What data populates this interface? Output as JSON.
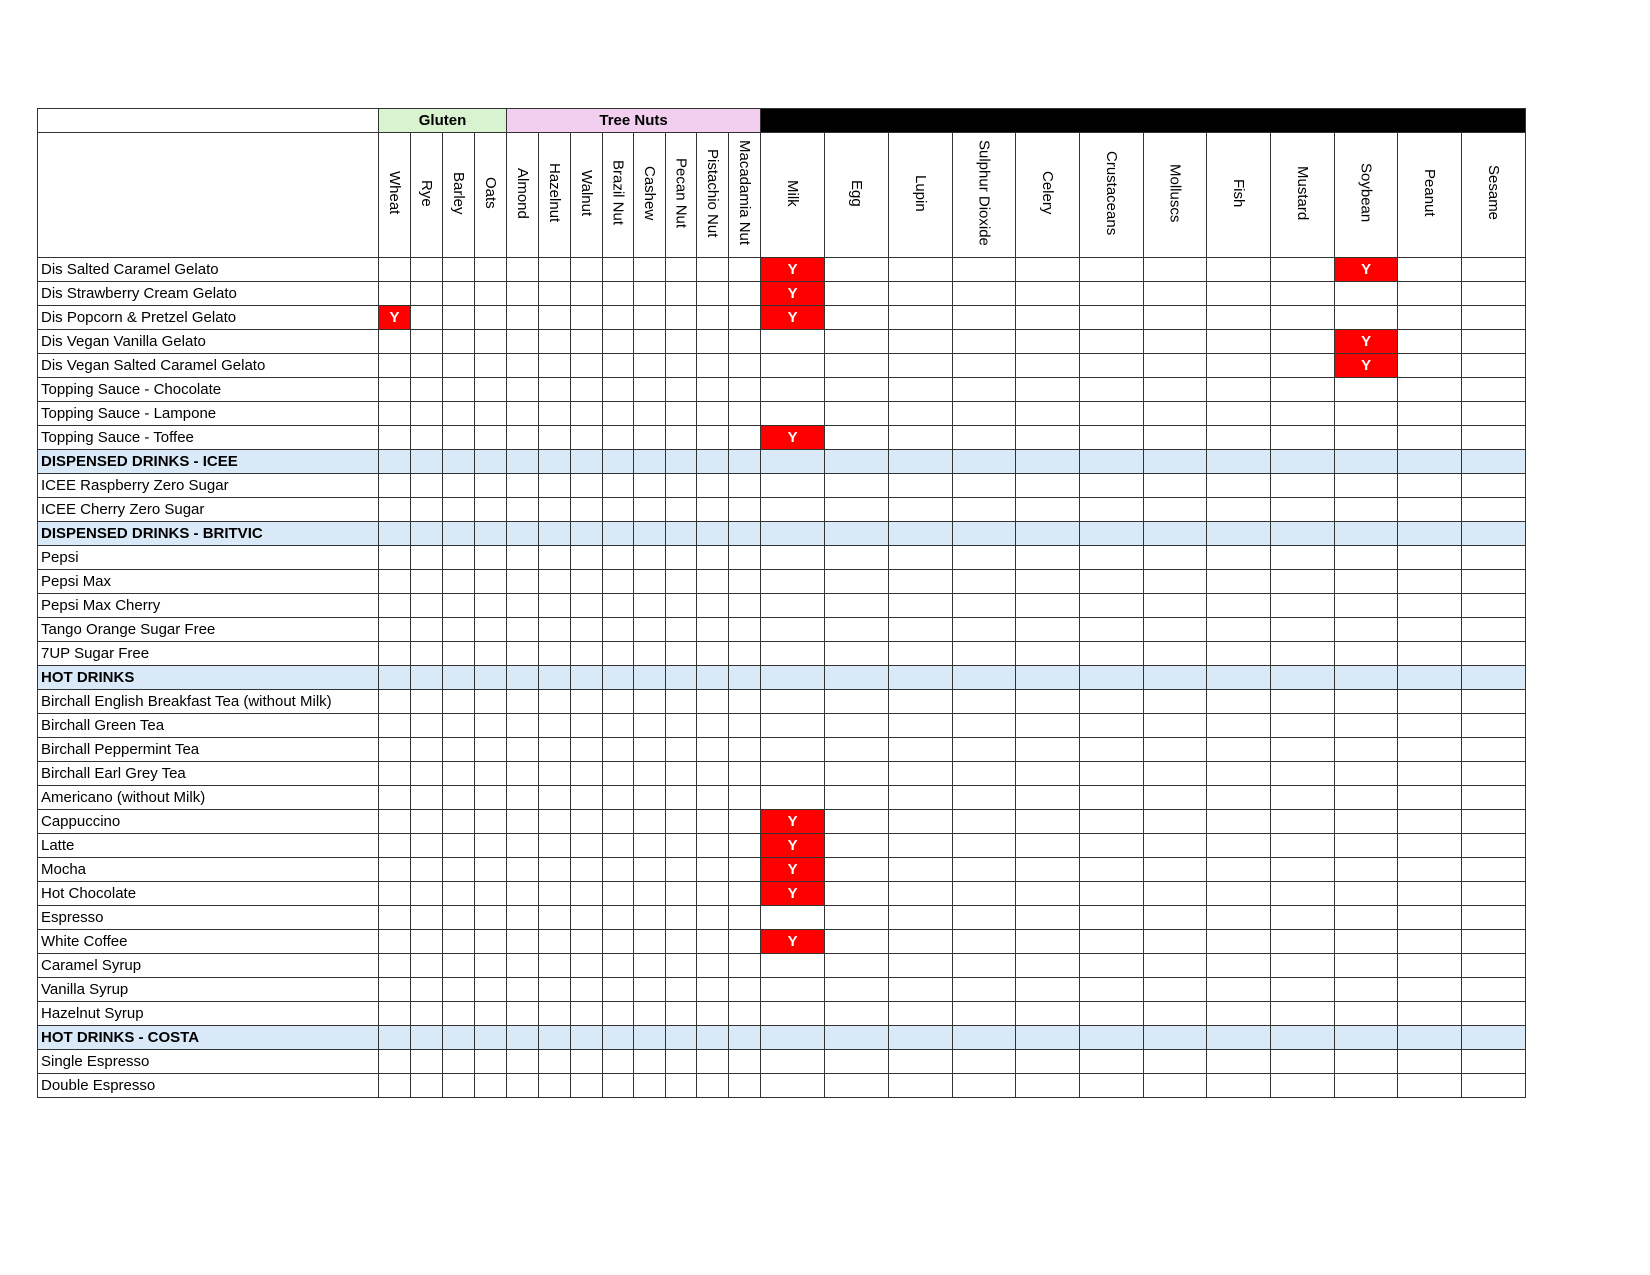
{
  "colors": {
    "gluten": "#d9f2d0",
    "tree_nuts": "#f2ceef",
    "section": "#dae9f8",
    "yes": "#ff0000"
  },
  "groups": {
    "gluten": "Gluten",
    "tree_nuts": "Tree Nuts"
  },
  "yes_mark": "Y",
  "columns": [
    "Wheat",
    "Rye",
    "Barley",
    "Oats",
    "Almond",
    "Hazelnut",
    "Walnut",
    "Brazil Nut",
    "Cashew",
    "Pecan Nut",
    "Pistachio Nut",
    "Macadamia Nut",
    "Milk",
    "Egg",
    "Lupin",
    "Sulphur Dioxide",
    "Celery",
    "Crustaceans",
    "Molluscs",
    "Fish",
    "Mustard",
    "Soybean",
    "Peanut",
    "Sesame"
  ],
  "rows": [
    {
      "name": "Dis Salted Caramel Gelato",
      "allergens": [
        "Milk",
        "Soybean"
      ]
    },
    {
      "name": "Dis Strawberry Cream Gelato",
      "allergens": [
        "Milk"
      ]
    },
    {
      "name": "Dis Popcorn & Pretzel Gelato",
      "allergens": [
        "Wheat",
        "Milk"
      ]
    },
    {
      "name": "Dis Vegan Vanilla Gelato",
      "allergens": [
        "Soybean"
      ]
    },
    {
      "name": "Dis Vegan Salted Caramel Gelato",
      "allergens": [
        "Soybean"
      ]
    },
    {
      "name": "Topping Sauce - Chocolate",
      "allergens": []
    },
    {
      "name": "Topping Sauce - Lampone",
      "allergens": []
    },
    {
      "name": "Topping Sauce - Toffee",
      "allergens": [
        "Milk"
      ]
    },
    {
      "name": "DISPENSED DRINKS - ICEE",
      "section": true
    },
    {
      "name": "ICEE Raspberry Zero Sugar",
      "allergens": []
    },
    {
      "name": "ICEE Cherry Zero Sugar",
      "allergens": []
    },
    {
      "name": "DISPENSED DRINKS - BRITVIC",
      "section": true
    },
    {
      "name": "Pepsi",
      "allergens": []
    },
    {
      "name": "Pepsi Max",
      "allergens": []
    },
    {
      "name": "Pepsi Max Cherry",
      "allergens": []
    },
    {
      "name": "Tango Orange Sugar Free",
      "allergens": []
    },
    {
      "name": "7UP Sugar Free",
      "allergens": []
    },
    {
      "name": "HOT DRINKS",
      "section": true
    },
    {
      "name": "Birchall English Breakfast Tea (without Milk)",
      "allergens": []
    },
    {
      "name": "Birchall Green Tea",
      "allergens": []
    },
    {
      "name": "Birchall Peppermint Tea",
      "allergens": []
    },
    {
      "name": "Birchall Earl Grey Tea",
      "allergens": []
    },
    {
      "name": "Americano (without Milk)",
      "allergens": []
    },
    {
      "name": "Cappuccino",
      "allergens": [
        "Milk"
      ]
    },
    {
      "name": "Latte",
      "allergens": [
        "Milk"
      ]
    },
    {
      "name": "Mocha",
      "allergens": [
        "Milk"
      ]
    },
    {
      "name": "Hot Chocolate",
      "allergens": [
        "Milk"
      ]
    },
    {
      "name": "Espresso",
      "allergens": []
    },
    {
      "name": "White Coffee",
      "allergens": [
        "Milk"
      ]
    },
    {
      "name": "Caramel Syrup",
      "allergens": []
    },
    {
      "name": "Vanilla Syrup",
      "allergens": []
    },
    {
      "name": "Hazelnut Syrup",
      "allergens": []
    },
    {
      "name": "HOT DRINKS - COSTA",
      "section": true
    },
    {
      "name": "Single Espresso",
      "allergens": []
    },
    {
      "name": "Double Espresso",
      "allergens": []
    }
  ]
}
